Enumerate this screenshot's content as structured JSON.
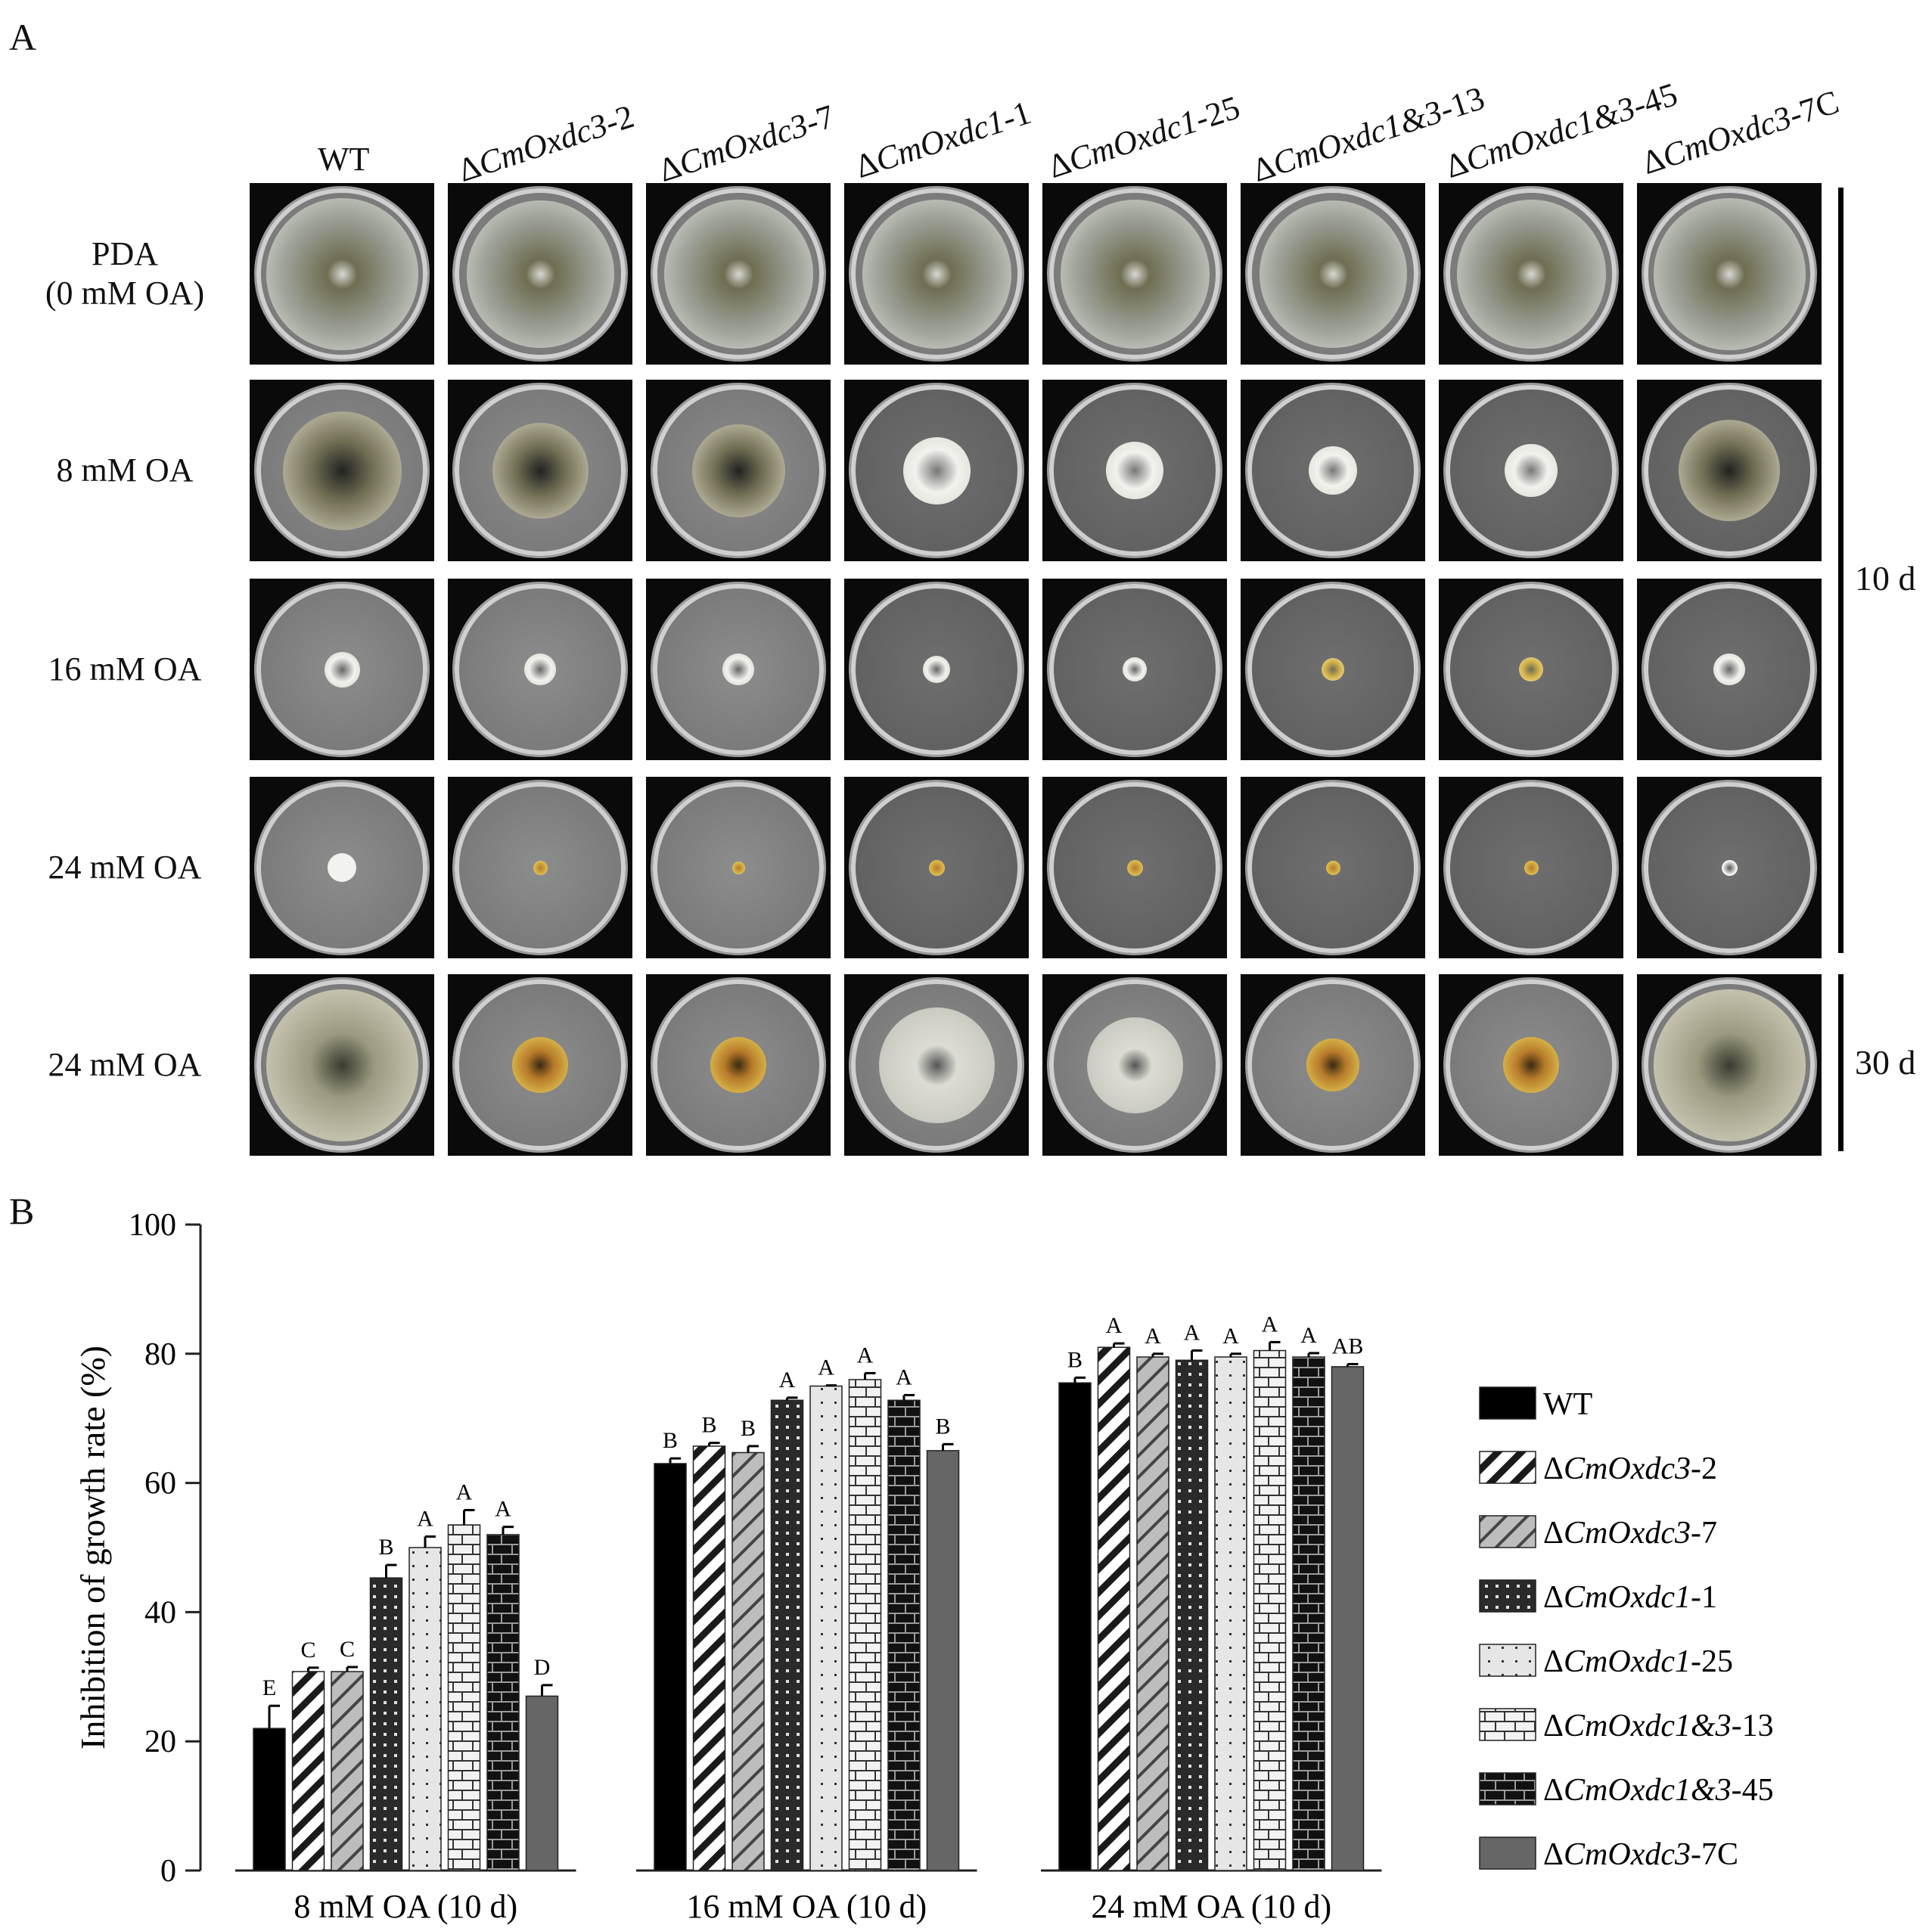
{
  "figure": {
    "panel_a_label": "A",
    "panel_b_label": "B",
    "columns": [
      {
        "prefix": "",
        "italic": "",
        "suffix": "WT"
      },
      {
        "prefix": "Δ",
        "italic": "CmOxdc3",
        "suffix": "-2"
      },
      {
        "prefix": "Δ",
        "italic": "CmOxdc3",
        "suffix": "-7"
      },
      {
        "prefix": "Δ",
        "italic": "CmOxdc1",
        "suffix": "-1"
      },
      {
        "prefix": "Δ",
        "italic": "CmOxdc1",
        "suffix": "-25"
      },
      {
        "prefix": "Δ",
        "italic": "CmOxdc1&3",
        "suffix": "-13"
      },
      {
        "prefix": "Δ",
        "italic": "CmOxdc1&3",
        "suffix": "-45"
      },
      {
        "prefix": "Δ",
        "italic": "CmOxdc3",
        "suffix": "-7C"
      }
    ],
    "rows": [
      {
        "label_line1": "PDA",
        "label_line2": "(0 mM OA)"
      },
      {
        "label_line1": "8 mM OA",
        "label_line2": ""
      },
      {
        "label_line1": "16 mM OA",
        "label_line2": ""
      },
      {
        "label_line1": "24 mM OA",
        "label_line2": ""
      },
      {
        "label_line1": "24 mM OA",
        "label_line2": ""
      }
    ],
    "day_labels": [
      "10 d",
      "30 d"
    ],
    "colony_relative_size": [
      [
        0.95,
        0.92,
        0.93,
        0.93,
        0.93,
        0.92,
        0.93,
        0.95
      ],
      [
        0.74,
        0.6,
        0.58,
        0.42,
        0.36,
        0.3,
        0.33,
        0.63
      ],
      [
        0.22,
        0.2,
        0.2,
        0.17,
        0.15,
        0.14,
        0.15,
        0.2
      ],
      [
        0.18,
        0.09,
        0.08,
        0.1,
        0.1,
        0.09,
        0.09,
        0.1
      ],
      [
        0.95,
        0.35,
        0.35,
        0.72,
        0.6,
        0.33,
        0.35,
        0.95
      ]
    ],
    "colony_colors": {
      "pda": "#9ea39a",
      "pda_edge": "#e8e8e0",
      "olive": "#6f6d52",
      "white": "#f2f2ee",
      "yellow": "#d8b64a",
      "brown": "#b77a2a"
    }
  },
  "chart_data": {
    "type": "bar",
    "ylabel": "Inhibition of growth rate (%)",
    "ylim": [
      0,
      100
    ],
    "yticks": [
      "0",
      "20",
      "40",
      "60",
      "80",
      "100"
    ],
    "categories": [
      "8 mM OA (10 d)",
      "16 mM OA (10 d)",
      "24 mM OA (10 d)"
    ],
    "series": [
      {
        "name": "WT",
        "name_prefix": "",
        "name_italic": "",
        "name_suffix": "WT",
        "pattern": "solid-black",
        "values": [
          22,
          63,
          75.5
        ],
        "errors": [
          3.5,
          0.8,
          0.8
        ],
        "letters": [
          "E",
          "B",
          "B"
        ]
      },
      {
        "name": "ΔCmOxdc3-2",
        "name_prefix": "Δ",
        "name_italic": "CmOxdc3",
        "name_suffix": "-2",
        "pattern": "hatch-black",
        "values": [
          30.8,
          65.7,
          81
        ],
        "errors": [
          0.6,
          0.5,
          0.6
        ],
        "letters": [
          "C",
          "B",
          "A"
        ]
      },
      {
        "name": "ΔCmOxdc3-7",
        "name_prefix": "Δ",
        "name_italic": "CmOxdc3",
        "name_suffix": "-7",
        "pattern": "hatch-grey",
        "values": [
          30.8,
          64.7,
          79.5
        ],
        "errors": [
          0.7,
          1.0,
          0.5
        ],
        "letters": [
          "C",
          "B",
          "A"
        ]
      },
      {
        "name": "ΔCmOxdc1-1",
        "name_prefix": "Δ",
        "name_italic": "CmOxdc1",
        "name_suffix": "-1",
        "pattern": "dots-dark",
        "values": [
          45.3,
          72.8,
          79
        ],
        "errors": [
          2.0,
          0.4,
          1.5
        ],
        "letters": [
          "B",
          "A",
          "A"
        ]
      },
      {
        "name": "ΔCmOxdc1-25",
        "name_prefix": "Δ",
        "name_italic": "CmOxdc1",
        "name_suffix": "-25",
        "pattern": "dots-light",
        "values": [
          50,
          75,
          79.5
        ],
        "errors": [
          1.7,
          0.1,
          0.5
        ],
        "letters": [
          "A",
          "A",
          "A"
        ]
      },
      {
        "name": "ΔCmOxdc1&3-13",
        "name_prefix": "Δ",
        "name_italic": "CmOxdc1&3",
        "name_suffix": "-13",
        "pattern": "brick-light",
        "values": [
          53.5,
          76,
          80.5
        ],
        "errors": [
          2.3,
          1.0,
          1.3
        ],
        "letters": [
          "A",
          "A",
          "A"
        ]
      },
      {
        "name": "ΔCmOxdc1&3-45",
        "name_prefix": "Δ",
        "name_italic": "CmOxdc1&3",
        "name_suffix": "-45",
        "pattern": "brick-dark",
        "values": [
          52,
          72.8,
          79.5
        ],
        "errors": [
          1.2,
          0.8,
          0.6
        ],
        "letters": [
          "A",
          "A",
          "A"
        ]
      },
      {
        "name": "ΔCmOxdc3-7C",
        "name_prefix": "Δ",
        "name_italic": "CmOxdc3",
        "name_suffix": "-7C",
        "pattern": "solid-grey",
        "values": [
          27,
          65,
          78
        ],
        "errors": [
          1.7,
          1.0,
          0.4
        ],
        "letters": [
          "D",
          "B",
          "AB"
        ]
      }
    ],
    "legend_position": "right",
    "grid": false
  }
}
